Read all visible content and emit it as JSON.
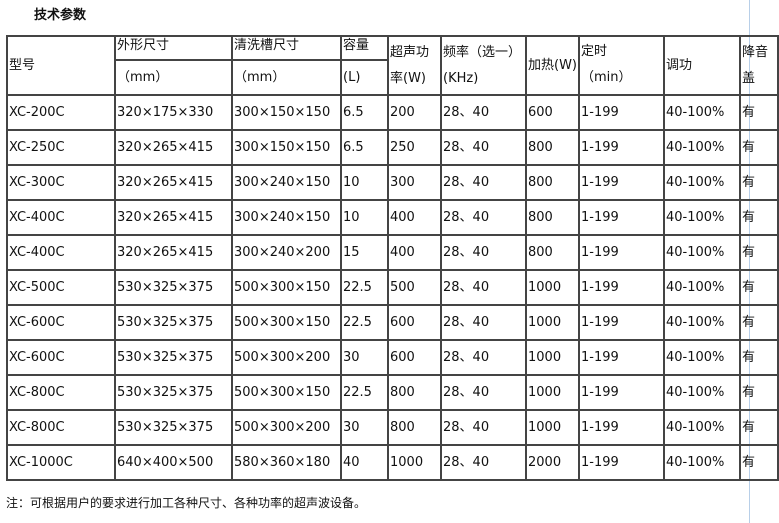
{
  "title": "技术参数",
  "headers": {
    "model": "型号",
    "outer": "外形尺寸",
    "outer_unit": "（mm）",
    "tank": "清洗槽尺寸",
    "tank_unit": "（mm）",
    "capacity": "容量",
    "capacity_unit": "(L)",
    "power": "超声功率(W)",
    "freq": "频率（选一）(KHz)",
    "heat": "加热(W)",
    "timer": "定时",
    "timer_unit": "（min）",
    "adjust": "调功",
    "lid": "降音盖"
  },
  "rows": [
    [
      "XC-200C",
      "320×175×330",
      "300×150×150",
      "6.5",
      "200",
      "28、40",
      "600",
      "1-199",
      "40-100%",
      "有"
    ],
    [
      "XC-250C",
      "320×265×415",
      "300×150×150",
      "6.5",
      "250",
      "28、40",
      "800",
      "1-199",
      "40-100%",
      "有"
    ],
    [
      "XC-300C",
      "320×265×415",
      "300×240×150",
      "10",
      "300",
      "28、40",
      "800",
      "1-199",
      "40-100%",
      "有"
    ],
    [
      "XC-400C",
      "320×265×415",
      "300×240×150",
      "10",
      "400",
      "28、40",
      "800",
      "1-199",
      "40-100%",
      "有"
    ],
    [
      "XC-400C",
      "320×265×415",
      "300×240×200",
      "15",
      "400",
      "28、40",
      "800",
      "1-199",
      "40-100%",
      "有"
    ],
    [
      "XC-500C",
      "530×325×375",
      "500×300×150",
      "22.5",
      "500",
      "28、40",
      "1000",
      "1-199",
      "40-100%",
      "有"
    ],
    [
      "XC-600C",
      "530×325×375",
      "500×300×150",
      "22.5",
      "600",
      "28、40",
      "1000",
      "1-199",
      "40-100%",
      "有"
    ],
    [
      "XC-600C",
      "530×325×375",
      "500×300×200",
      "30",
      "600",
      "28、40",
      "1000",
      "1-199",
      "40-100%",
      "有"
    ],
    [
      "XC-800C",
      "530×325×375",
      "500×300×150",
      "22.5",
      "800",
      "28、40",
      "1000",
      "1-199",
      "40-100%",
      "有"
    ],
    [
      "XC-800C",
      "530×325×375",
      "500×300×200",
      "30",
      "800",
      "28、40",
      "1000",
      "1-199",
      "40-100%",
      "有"
    ],
    [
      "XC-1000C",
      "640×400×500",
      "580×360×180",
      "40",
      "1000",
      "28、40",
      "2000",
      "1-199",
      "40-100%",
      "有"
    ]
  ],
  "note": "注：可根据用户的要求进行加工各种尺寸、各种功率的超声波设备。"
}
